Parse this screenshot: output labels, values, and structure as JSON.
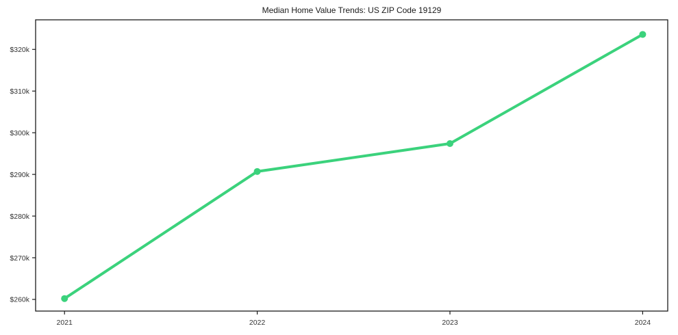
{
  "chart_data": {
    "type": "line",
    "title": "Median Home Value Trends: US ZIP Code 19129",
    "x": [
      2021,
      2022,
      2023,
      2024
    ],
    "x_tick_labels": [
      "2021",
      "2022",
      "2023",
      "2024"
    ],
    "series": [
      {
        "name": "median-home-value",
        "values_k": [
          260.2,
          290.7,
          297.4,
          323.6
        ],
        "color": "#3bd27c"
      }
    ],
    "y_ticks_k": [
      260,
      270,
      280,
      290,
      300,
      310,
      320
    ],
    "y_tick_labels": [
      "$260k",
      "$270k",
      "$280k",
      "$290k",
      "$300k",
      "$310k",
      "$320k"
    ],
    "xlim": [
      2020.85,
      2024.13
    ],
    "ylim_k": [
      257.2,
      327.1
    ],
    "ylabel": "",
    "xlabel": "",
    "grid": false,
    "legend": "none",
    "axis_color": "#1a1a1a",
    "tick_label_color": "#333333",
    "background": "#ffffff"
  }
}
